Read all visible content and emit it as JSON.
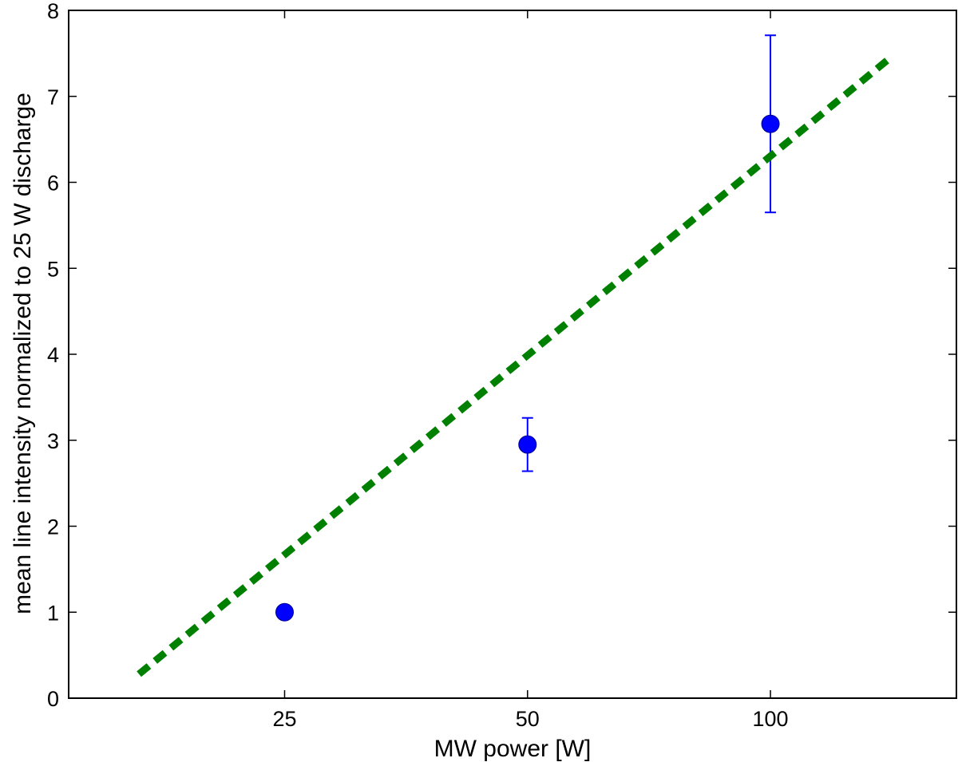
{
  "chart_data": {
    "type": "scatter",
    "xlabel": "MW power [W]",
    "ylabel": "mean line intensity normalized to 25 W discharge",
    "x_scale": "log",
    "xlim": [
      13.5,
      170
    ],
    "ylim": [
      0,
      8
    ],
    "x_ticks": [
      25,
      50,
      100
    ],
    "x_tick_labels": [
      "25",
      "50",
      "100"
    ],
    "y_ticks": [
      0,
      1,
      2,
      3,
      4,
      5,
      6,
      7,
      8
    ],
    "y_tick_labels": [
      "0",
      "1",
      "2",
      "3",
      "4",
      "5",
      "6",
      "7",
      "8"
    ],
    "grid": false,
    "legend": false,
    "series": [
      {
        "kind": "errorbar-points",
        "color": "#0000ff",
        "x": [
          25,
          50,
          100
        ],
        "y": [
          1.0,
          2.95,
          6.68
        ],
        "yerr": [
          0.0,
          0.31,
          1.03
        ]
      },
      {
        "kind": "fit-line",
        "style": "dashed",
        "color": "#008000",
        "x": [
          16.5,
          140
        ],
        "y": [
          0.28,
          7.43
        ]
      }
    ]
  }
}
